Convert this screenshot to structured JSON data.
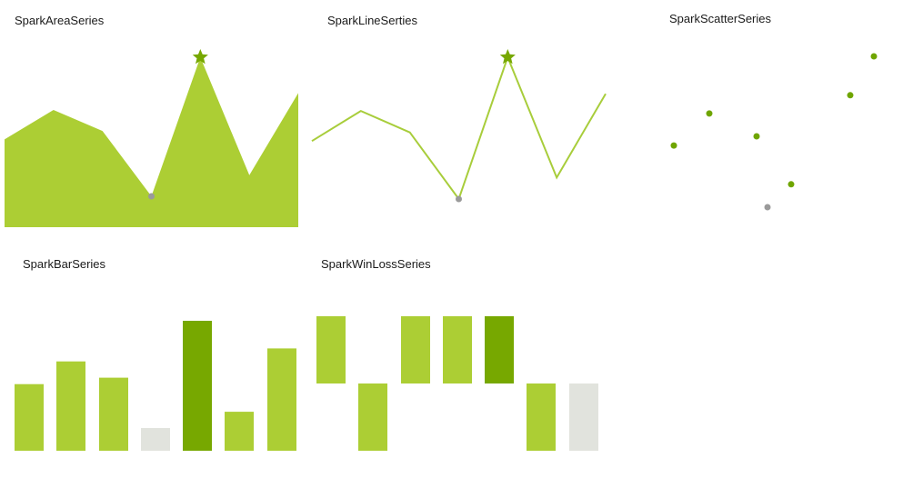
{
  "colors": {
    "fill": "#acce34",
    "line": "#a8cd3b",
    "high": "#77a800",
    "low": "#e1e3dd",
    "low_marker": "#9a9a9a",
    "point": "#6fa500"
  },
  "chart_data": [
    {
      "type": "area",
      "title": "SparkAreaSeries",
      "values": [
        4.1,
        5.5,
        4.5,
        1.4,
        8.0,
        2.4,
        6.3
      ],
      "high_marker": "star",
      "low_marker": "dot"
    },
    {
      "type": "line",
      "title": "SparkLineSerties",
      "values": [
        4.1,
        5.5,
        4.5,
        1.4,
        8.0,
        2.4,
        6.3
      ],
      "high_marker": "star",
      "low_marker": "dot"
    },
    {
      "type": "scatter",
      "title": "SparkScatterSeries",
      "values": [
        4.1,
        5.5,
        4.5,
        1.4,
        8.0,
        2.4,
        6.3
      ],
      "low_marker": "dot"
    },
    {
      "type": "bar",
      "title": "SparkBarSeries",
      "values": [
        4.1,
        5.5,
        4.5,
        1.4,
        8.0,
        2.4,
        6.3
      ],
      "highlight": "max-and-min"
    },
    {
      "type": "winloss",
      "title": "SparkWinLossSeries",
      "values": [
        1,
        -1,
        1,
        1,
        1,
        -1,
        -1
      ],
      "highlight": "high-and-last"
    }
  ]
}
